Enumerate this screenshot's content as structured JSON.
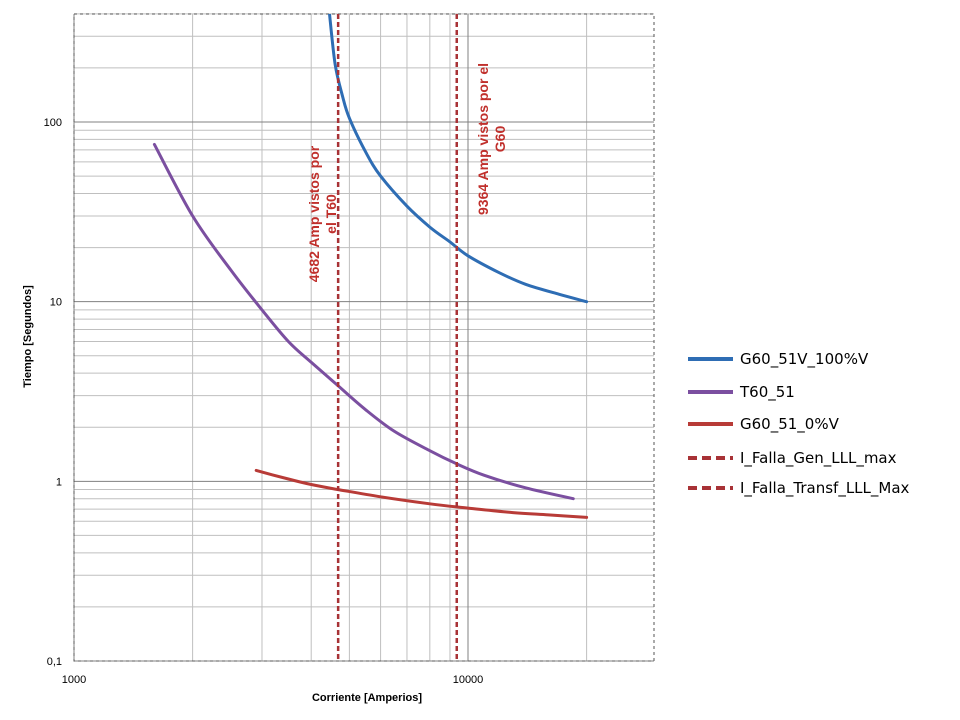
{
  "chart_data": {
    "type": "line",
    "x_scale": "log",
    "y_scale": "log",
    "xlabel": "Corriente [Amperios]",
    "ylabel": "Tiempo [Segundos]",
    "xlim": [
      1000,
      32000
    ],
    "ylim": [
      0.1,
      400
    ],
    "x_ticks": [
      {
        "value": 1000,
        "label": "1000"
      },
      {
        "value": 10000,
        "label": "10000"
      }
    ],
    "y_ticks": [
      {
        "value": 0.1,
        "label": "0,1"
      },
      {
        "value": 1,
        "label": "1"
      },
      {
        "value": 10,
        "label": "10"
      },
      {
        "value": 100,
        "label": "100"
      }
    ],
    "legend_position": "right",
    "series": [
      {
        "name": "G60_51V_100%V",
        "color": "#2e6db4",
        "dash": "solid",
        "points": [
          [
            4450,
            400
          ],
          [
            4600,
            210
          ],
          [
            4800,
            140
          ],
          [
            5000,
            105
          ],
          [
            5500,
            68
          ],
          [
            6000,
            50
          ],
          [
            7000,
            34
          ],
          [
            8000,
            26
          ],
          [
            9000,
            21.5
          ],
          [
            10000,
            18
          ],
          [
            12000,
            14.5
          ],
          [
            14000,
            12.5
          ],
          [
            17000,
            11
          ],
          [
            20000,
            10
          ]
        ]
      },
      {
        "name": "T60_51",
        "color": "#7b4fa0",
        "dash": "solid",
        "points": [
          [
            1600,
            75
          ],
          [
            2000,
            30
          ],
          [
            2500,
            15
          ],
          [
            3000,
            9
          ],
          [
            3500,
            6
          ],
          [
            4000,
            4.6
          ],
          [
            4682,
            3.4
          ],
          [
            5500,
            2.5
          ],
          [
            6500,
            1.9
          ],
          [
            8000,
            1.48
          ],
          [
            9364,
            1.25
          ],
          [
            11000,
            1.08
          ],
          [
            14000,
            0.92
          ],
          [
            18500,
            0.8
          ]
        ]
      },
      {
        "name": "G60_51_0%V",
        "color": "#b83b37",
        "dash": "solid",
        "points": [
          [
            2900,
            1.15
          ],
          [
            3500,
            1.03
          ],
          [
            4000,
            0.96
          ],
          [
            4682,
            0.9
          ],
          [
            6000,
            0.82
          ],
          [
            8000,
            0.75
          ],
          [
            10000,
            0.71
          ],
          [
            13000,
            0.67
          ],
          [
            16000,
            0.65
          ],
          [
            20000,
            0.63
          ]
        ]
      },
      {
        "name": "I_Falla_Gen_LLL_max",
        "color": "#a83236",
        "dash": "dashed",
        "vertical_x": 9364
      },
      {
        "name": "I_Falla_Transf_LLL_Max",
        "color": "#a83236",
        "dash": "dashed",
        "vertical_x": 4682
      }
    ],
    "annotations": [
      {
        "x": 4682,
        "line1": "4682 Amp vistos por",
        "line2": "el T60",
        "color": "#c0302c"
      },
      {
        "x": 9364,
        "line1": "9364 Amp vistos por el",
        "line2": "G60",
        "color": "#c0302c"
      }
    ]
  }
}
